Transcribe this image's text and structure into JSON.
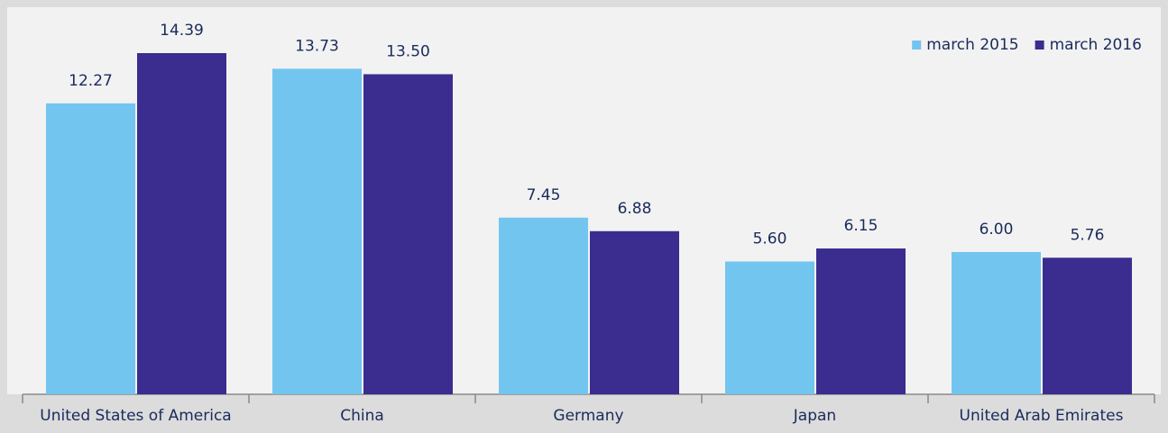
{
  "chart_data": {
    "type": "bar",
    "categories": [
      "United States of America",
      "China",
      "Germany",
      "Japan",
      "United Arab Emirates"
    ],
    "series": [
      {
        "name": "march 2015",
        "color": "#72c5ef",
        "values": [
          12.27,
          13.73,
          7.45,
          5.6,
          6.0
        ],
        "value_labels": [
          "12.27",
          "13.73",
          "7.45",
          "5.60",
          "6.00"
        ]
      },
      {
        "name": "march 2016",
        "color": "#3a2d8f",
        "values": [
          14.39,
          13.5,
          6.88,
          6.15,
          5.76
        ],
        "value_labels": [
          "14.39",
          "13.50",
          "6.88",
          "6.15",
          "5.76"
        ]
      }
    ],
    "legend": "top-right"
  }
}
